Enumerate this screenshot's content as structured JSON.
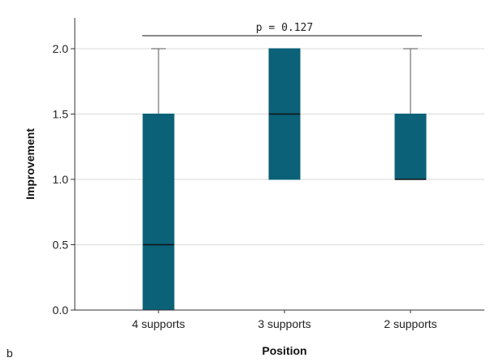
{
  "chart_data": {
    "type": "box",
    "xlabel": "Position",
    "ylabel": "Improvement",
    "ylim": [
      0,
      2.2
    ],
    "yticks": [
      0.0,
      0.5,
      1.0,
      1.5,
      2.0
    ],
    "ytick_labels": [
      "0.0",
      "0.5",
      "1.0",
      "1.5",
      "2.0"
    ],
    "grid": "horizontal",
    "categories": [
      "4 supports",
      "3 supports",
      "2 supports"
    ],
    "boxes": [
      {
        "category": "4 supports",
        "min": 0.0,
        "q1": 0.0,
        "median": 0.5,
        "q3": 1.5,
        "max": 2.0
      },
      {
        "category": "3 supports",
        "min": 1.0,
        "q1": 1.0,
        "median": 1.5,
        "q3": 2.0,
        "max": 2.0
      },
      {
        "category": "2 supports",
        "min": 1.0,
        "q1": 1.0,
        "median": 1.0,
        "q3": 1.5,
        "max": 2.0
      }
    ],
    "annotation": {
      "text": "p = 0.127",
      "from": "4 supports",
      "to": "2 supports",
      "y": 2.1
    },
    "panel_label": "b",
    "colors": {
      "box": "#0a6178",
      "median": "#111111",
      "whisker": "#555555",
      "grid": "#d9d9d9",
      "axis": "#333333"
    }
  }
}
